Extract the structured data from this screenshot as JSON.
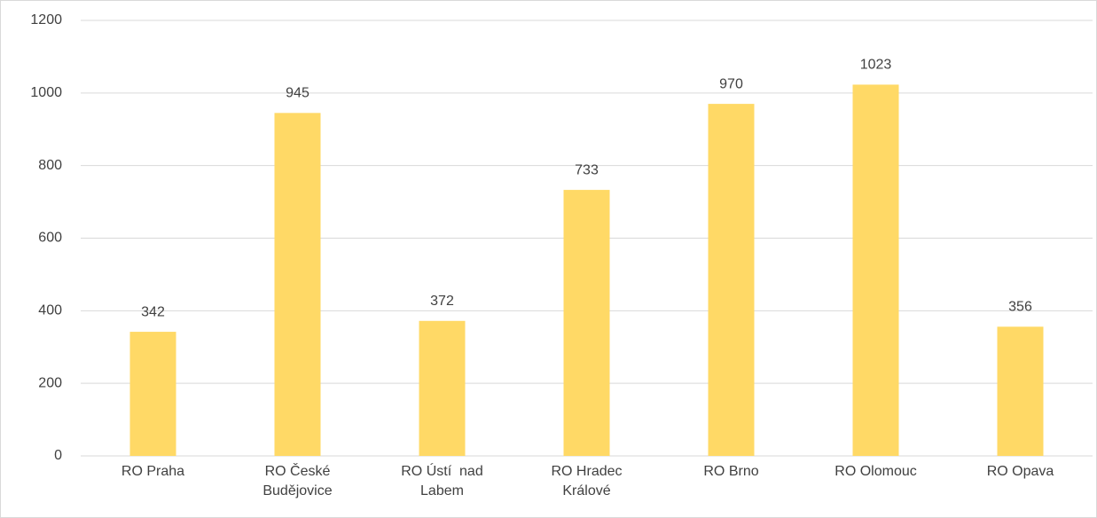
{
  "chart_data": {
    "type": "bar",
    "categories": [
      "RO Praha",
      "RO České Budějovice",
      "RO Ústí  nad Labem",
      "RO Hradec Králové",
      "RO Brno",
      "RO Olomouc",
      "RO Opava"
    ],
    "values": [
      342,
      945,
      372,
      733,
      970,
      1023,
      356
    ],
    "color": "#ffd966",
    "ylim": [
      0,
      1200
    ],
    "yticks": [
      0,
      200,
      400,
      600,
      800,
      1000,
      1200
    ],
    "grid": true
  }
}
